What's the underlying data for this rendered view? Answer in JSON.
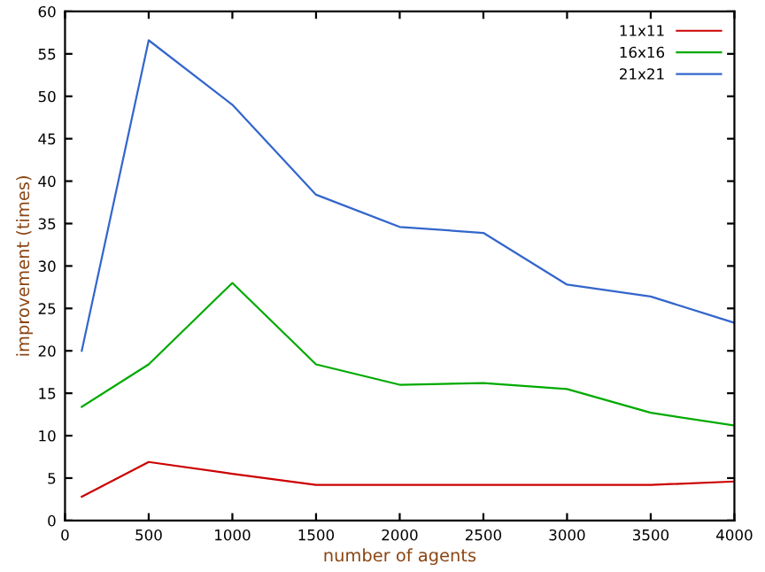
{
  "chart_data": {
    "type": "line",
    "xlabel": "number of agents",
    "ylabel": "improvement (times)",
    "x": [
      100,
      500,
      1000,
      1500,
      2000,
      2500,
      3000,
      3500,
      4000
    ],
    "series": [
      {
        "name": "11x11",
        "color": "#cc0000",
        "values": [
          2.8,
          6.9,
          5.5,
          4.2,
          4.2,
          4.2,
          4.2,
          4.2,
          4.6
        ]
      },
      {
        "name": "16x16",
        "color": "#00aa00",
        "values": [
          13.4,
          18.4,
          28,
          18.4,
          16,
          16.2,
          15.5,
          12.7,
          11.2
        ]
      },
      {
        "name": "21x21",
        "color": "#3366cc",
        "values": [
          20,
          56.6,
          49,
          38.4,
          34.6,
          33.9,
          27.8,
          26.4,
          23.3
        ]
      }
    ],
    "xlim": [
      0,
      4000
    ],
    "xticks": [
      0,
      500,
      1000,
      1500,
      2000,
      2500,
      3000,
      3500,
      4000
    ],
    "ylim": [
      0,
      60
    ],
    "yticks": [
      0,
      5,
      10,
      15,
      20,
      25,
      30,
      35,
      40,
      45,
      50,
      55,
      60
    ],
    "grid": false,
    "legend": "top right",
    "marker": "none",
    "line_style": "solid"
  }
}
